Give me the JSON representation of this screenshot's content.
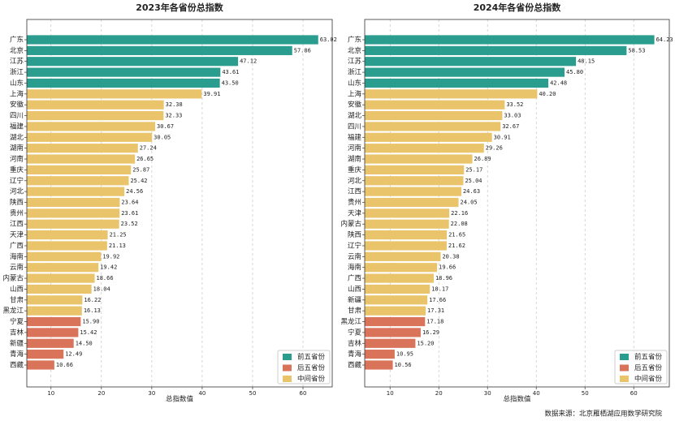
{
  "chart_data": [
    {
      "type": "bar",
      "orientation": "horizontal",
      "title": "2023年各省份总指数",
      "x_label": "总指数值",
      "categories": [
        "广东",
        "北京",
        "江苏",
        "浙江",
        "山东",
        "上海",
        "安徽",
        "四川",
        "福建",
        "湖北",
        "湖南",
        "河南",
        "重庆",
        "辽宁",
        "河北",
        "陕西",
        "贵州",
        "江西",
        "天津",
        "广西",
        "海南",
        "云南",
        "内蒙古",
        "山西",
        "甘肃",
        "黑龙江",
        "宁夏",
        "吉林",
        "新疆",
        "青海",
        "西藏"
      ],
      "series": [
        {
          "name": "前五省份",
          "color": "#2a9d8f",
          "values": [
            63.02,
            57.86,
            47.12,
            43.61,
            43.5,
            null,
            null,
            null,
            null,
            null,
            null,
            null,
            null,
            null,
            null,
            null,
            null,
            null,
            null,
            null,
            null,
            null,
            null,
            null,
            null,
            null,
            null,
            null,
            null,
            null,
            null
          ],
          "value_labels": [
            "63.02",
            "57.86",
            "47.12",
            "43.61",
            "43.50",
            null,
            null,
            null,
            null,
            null,
            null,
            null,
            null,
            null,
            null,
            null,
            null,
            null,
            null,
            null,
            null,
            null,
            null,
            null,
            null,
            null,
            null,
            null,
            null,
            null,
            null
          ]
        },
        {
          "name": "后五省份",
          "color": "#d9735a",
          "values": [
            null,
            null,
            null,
            null,
            null,
            null,
            null,
            null,
            null,
            null,
            null,
            null,
            null,
            null,
            null,
            null,
            null,
            null,
            null,
            null,
            null,
            null,
            null,
            null,
            null,
            null,
            15.9,
            15.42,
            14.5,
            12.49,
            10.66
          ],
          "value_labels": [
            null,
            null,
            null,
            null,
            null,
            null,
            null,
            null,
            null,
            null,
            null,
            null,
            null,
            null,
            null,
            null,
            null,
            null,
            null,
            null,
            null,
            null,
            null,
            null,
            null,
            null,
            "15.90",
            "15.42",
            "14.50",
            "12.49",
            "10.66"
          ]
        },
        {
          "name": "中间省份",
          "color": "#e9c46a",
          "values": [
            null,
            null,
            null,
            null,
            null,
            39.91,
            32.38,
            32.33,
            30.67,
            30.05,
            27.24,
            26.65,
            25.87,
            25.42,
            24.56,
            23.64,
            23.61,
            23.52,
            21.25,
            21.13,
            19.92,
            19.42,
            18.66,
            18.04,
            16.22,
            16.13,
            null,
            null,
            null,
            null,
            null
          ],
          "value_labels": [
            null,
            null,
            null,
            null,
            null,
            "39.91",
            "32.38",
            "32.33",
            "30.67",
            "30.05",
            "27.24",
            "26.65",
            "25.87",
            "25.42",
            "24.56",
            "23.64",
            "23.61",
            "23.52",
            "21.25",
            "21.13",
            "19.92",
            "19.42",
            "18.66",
            "18.04",
            "16.22",
            "16.13",
            null,
            null,
            null,
            null,
            null
          ]
        }
      ],
      "xlim": [
        5.2,
        65.8
      ],
      "xticks": [
        10,
        20,
        30,
        40,
        50,
        60
      ],
      "grid": true,
      "legend": "lower right"
    },
    {
      "type": "bar",
      "orientation": "horizontal",
      "title": "2024年各省份总指数",
      "x_label": "总指数值",
      "categories": [
        "广东",
        "北京",
        "江苏",
        "浙江",
        "山东",
        "上海",
        "安徽",
        "湖北",
        "四川",
        "福建",
        "河南",
        "湖南",
        "重庆",
        "河北",
        "江西",
        "贵州",
        "天津",
        "内蒙古",
        "陕西",
        "辽宁",
        "云南",
        "海南",
        "广西",
        "山西",
        "新疆",
        "甘肃",
        "黑龙江",
        "宁夏",
        "吉林",
        "青海",
        "西藏"
      ],
      "series": [
        {
          "name": "前五省份",
          "color": "#2a9d8f",
          "values": [
            64.23,
            58.53,
            48.15,
            45.8,
            42.48,
            null,
            null,
            null,
            null,
            null,
            null,
            null,
            null,
            null,
            null,
            null,
            null,
            null,
            null,
            null,
            null,
            null,
            null,
            null,
            null,
            null,
            null,
            null,
            null,
            null,
            null
          ],
          "value_labels": [
            "64.23",
            "58.53",
            "48.15",
            "45.80",
            "42.48",
            null,
            null,
            null,
            null,
            null,
            null,
            null,
            null,
            null,
            null,
            null,
            null,
            null,
            null,
            null,
            null,
            null,
            null,
            null,
            null,
            null,
            null,
            null,
            null,
            null,
            null
          ]
        },
        {
          "name": "后五省份",
          "color": "#d9735a",
          "values": [
            null,
            null,
            null,
            null,
            null,
            null,
            null,
            null,
            null,
            null,
            null,
            null,
            null,
            null,
            null,
            null,
            null,
            null,
            null,
            null,
            null,
            null,
            null,
            null,
            null,
            null,
            17.18,
            16.29,
            15.2,
            10.95,
            10.56
          ],
          "value_labels": [
            null,
            null,
            null,
            null,
            null,
            null,
            null,
            null,
            null,
            null,
            null,
            null,
            null,
            null,
            null,
            null,
            null,
            null,
            null,
            null,
            null,
            null,
            null,
            null,
            null,
            null,
            "17.18",
            "16.29",
            "15.20",
            "10.95",
            "10.56"
          ]
        },
        {
          "name": "中间省份",
          "color": "#e9c46a",
          "values": [
            null,
            null,
            null,
            null,
            null,
            40.2,
            33.52,
            33.03,
            32.67,
            30.91,
            29.26,
            26.89,
            25.17,
            25.04,
            24.63,
            24.05,
            22.16,
            22.08,
            21.65,
            21.62,
            20.38,
            19.66,
            18.96,
            18.17,
            17.66,
            17.31,
            null,
            null,
            null,
            null,
            null
          ],
          "value_labels": [
            null,
            null,
            null,
            null,
            null,
            "40.20",
            "33.52",
            "33.03",
            "32.67",
            "30.91",
            "29.26",
            "26.89",
            "25.17",
            "25.04",
            "24.63",
            "24.05",
            "22.16",
            "22.08",
            "21.65",
            "21.62",
            "20.38",
            "19.66",
            "18.96",
            "18.17",
            "17.66",
            "17.31",
            null,
            null,
            null,
            null,
            null
          ]
        }
      ],
      "xlim": [
        4.8,
        67.3
      ],
      "xticks": [
        10,
        20,
        30,
        40,
        50,
        60
      ],
      "grid": true,
      "legend": "lower right"
    }
  ],
  "source": "数据来源：北京雁栖湖应用数学研究院"
}
